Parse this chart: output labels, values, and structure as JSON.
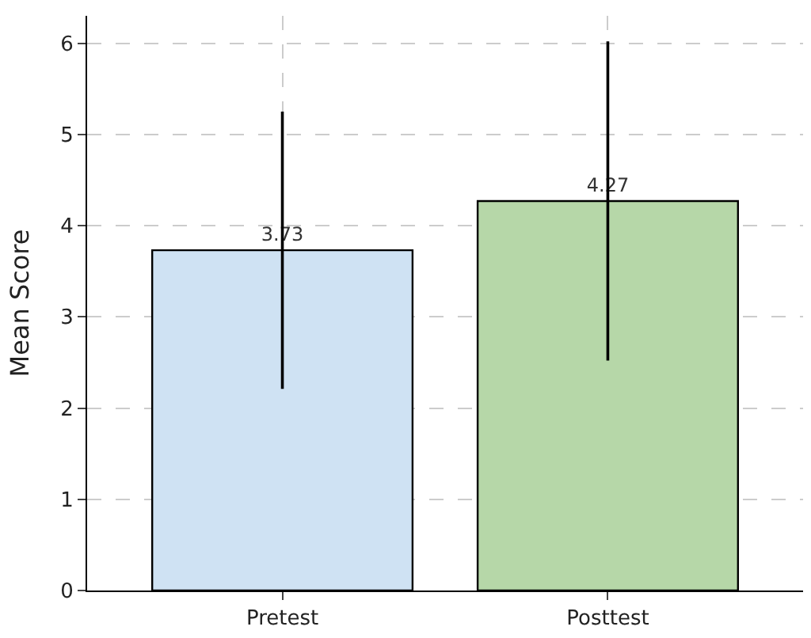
{
  "chart_data": {
    "type": "bar",
    "ylabel": "Mean Score",
    "categories": [
      "Pretest",
      "Posttest"
    ],
    "values": [
      3.73,
      4.27
    ],
    "colors": [
      "#cfe2f3",
      "#b6d7a8"
    ],
    "errors": [
      1.52,
      1.75
    ],
    "data_labels": true,
    "ylim": [
      0,
      6.3
    ],
    "yticks": [
      0,
      1,
      2,
      3,
      4,
      5,
      6
    ],
    "grid": true
  }
}
